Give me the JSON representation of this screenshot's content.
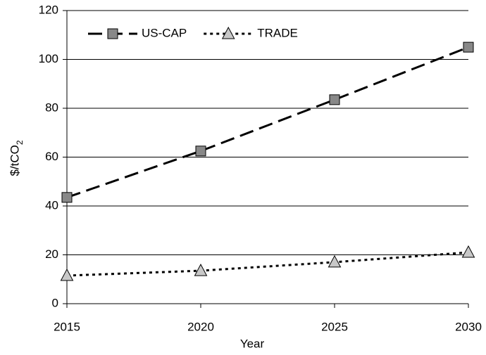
{
  "chart_data": {
    "type": "line",
    "x": [
      2015,
      2020,
      2025,
      2030
    ],
    "xlim": [
      2015,
      2030
    ],
    "xticks": [
      2015,
      2020,
      2025,
      2030
    ],
    "ylim": [
      0,
      120
    ],
    "yticks": [
      0,
      20,
      40,
      60,
      80,
      100,
      120
    ],
    "x_label": "Year",
    "y_label": "$/tCO2",
    "grid": true,
    "legend": "upper left",
    "series": [
      {
        "name": "US-CAP",
        "color": "#888888",
        "line": "dashed",
        "marker": "square",
        "values": [
          43.5,
          62.5,
          83.5,
          105
        ]
      },
      {
        "name": "TRADE",
        "color": "#c8c8c8",
        "line": "dotted",
        "marker": "triangle",
        "values": [
          11.5,
          13.5,
          17,
          21
        ]
      }
    ]
  }
}
